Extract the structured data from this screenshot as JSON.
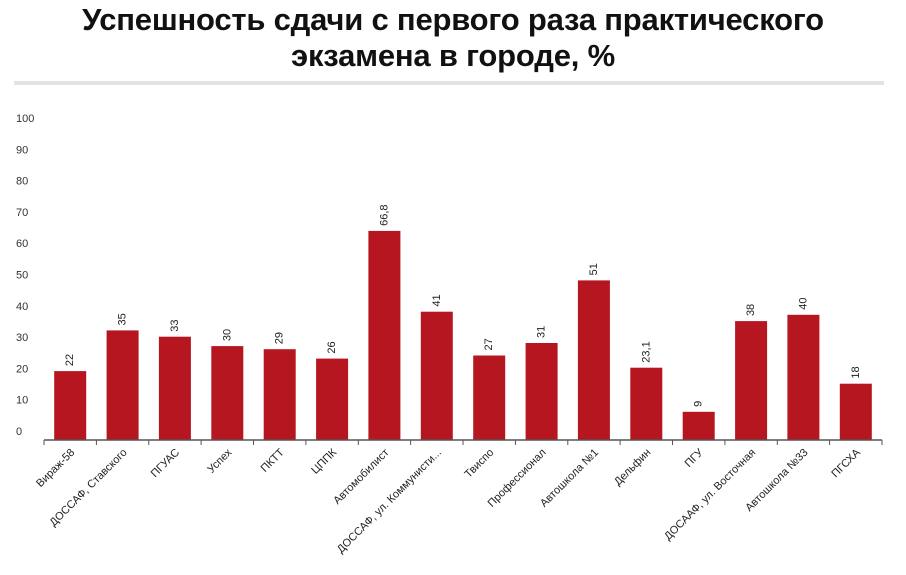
{
  "chart_data": {
    "type": "bar",
    "title_lines": [
      "Успешность сдачи с первого раза практического",
      "экзамена в городе, %"
    ],
    "xlabel": "",
    "ylabel": "",
    "ylim": [
      0,
      100
    ],
    "yticks": [
      0,
      10,
      20,
      30,
      40,
      50,
      60,
      70,
      80,
      90,
      100
    ],
    "grid": false,
    "bar_color": "#b5161f",
    "categories": [
      "Вираж-58",
      "ДОССАФ, Ставского",
      "ПГУАС",
      "Успех",
      "ПКТТ",
      "ЦППК",
      "Автомобилист",
      "ДОССАФ, ул. Коммунисти...",
      "Твиспо",
      "Профессионал",
      "Автошкола №1",
      "Дельфин",
      "ПГУ",
      "ДОСААФ, ул. Восточная",
      "Автошкола №33",
      "ПГСХА"
    ],
    "values": [
      22,
      35,
      33,
      30,
      29,
      26,
      66.8,
      41,
      27,
      31,
      51,
      23.1,
      9,
      38,
      40,
      18
    ],
    "value_labels": [
      "22",
      "35",
      "33",
      "30",
      "29",
      "26",
      "66,8",
      "41",
      "27",
      "31",
      "51",
      "23,1",
      "9",
      "38",
      "40",
      "18"
    ]
  }
}
